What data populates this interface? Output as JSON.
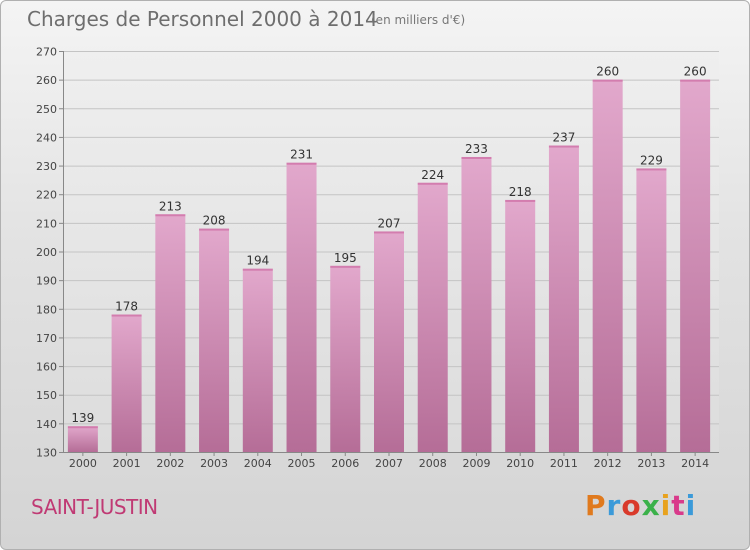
{
  "header": {
    "title": "Charges de Personnel 2000 à 2014",
    "subtitle": "(en milliers d'€)"
  },
  "footer": {
    "commune": "SAINT-JUSTIN",
    "logo_text": "Proxiti"
  },
  "colors": {
    "bar_top": "#e2a8cc",
    "bar_bottom": "#b56d97",
    "commune": "#c03a74",
    "logo_letters": [
      "#e07a1e",
      "#3b9ad9",
      "#d93a2b",
      "#3bb14a",
      "#e8a21e",
      "#d93a8b",
      "#3b9ad9"
    ]
  },
  "chart_data": {
    "type": "bar",
    "title": "Charges de Personnel 2000 à 2014",
    "subtitle": "(en milliers d'€)",
    "categories": [
      "2000",
      "2001",
      "2002",
      "2003",
      "2004",
      "2005",
      "2006",
      "2007",
      "2008",
      "2009",
      "2010",
      "2011",
      "2012",
      "2013",
      "2014"
    ],
    "values": [
      139,
      178,
      213,
      208,
      194,
      231,
      195,
      207,
      224,
      233,
      218,
      237,
      260,
      229,
      260
    ],
    "ylim": [
      130,
      270
    ],
    "yticks": [
      130,
      140,
      150,
      160,
      170,
      180,
      190,
      200,
      210,
      220,
      230,
      240,
      250,
      260,
      270
    ],
    "grid": true,
    "legend": "none"
  }
}
